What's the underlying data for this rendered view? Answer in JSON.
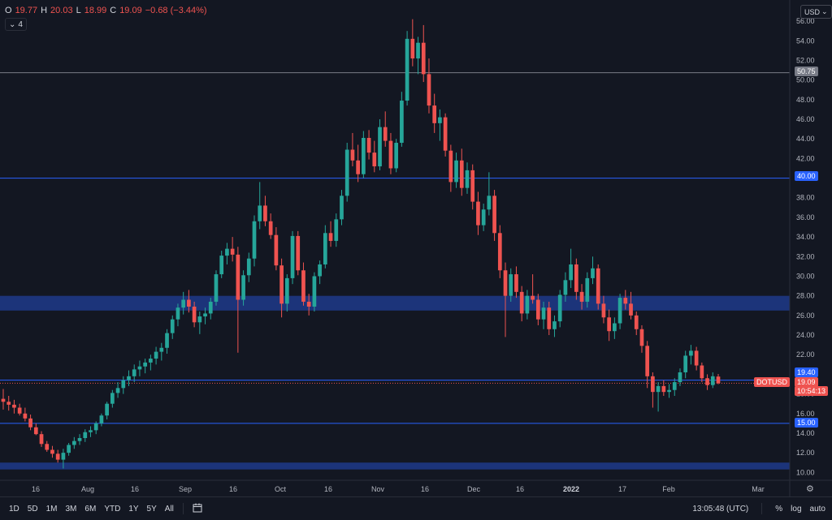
{
  "legend": {
    "open_label": "O",
    "open": "19.77",
    "high_label": "H",
    "high": "20.03",
    "low_label": "L",
    "low": "18.99",
    "close_label": "C",
    "close": "19.09",
    "change": "−0.68 (−3.44%)"
  },
  "indicator_toggle": {
    "icon": "chevron-down-icon",
    "count": "4"
  },
  "currency": {
    "label": "USD",
    "icon": "chevron-down-icon"
  },
  "price_axis": {
    "ticks": [
      "56.00",
      "54.00",
      "52.00",
      "50.00",
      "48.00",
      "46.00",
      "44.00",
      "42.00",
      "40.00",
      "38.00",
      "36.00",
      "34.00",
      "32.00",
      "30.00",
      "28.00",
      "26.00",
      "24.00",
      "22.00",
      "20.00",
      "18.00",
      "16.00",
      "14.00",
      "12.00",
      "10.00"
    ],
    "tick_values": [
      56,
      54,
      52,
      50,
      48,
      46,
      44,
      42,
      40,
      38,
      36,
      34,
      32,
      30,
      28,
      26,
      24,
      22,
      20,
      18,
      16,
      14,
      12,
      10
    ]
  },
  "levels": {
    "line_50": {
      "value": 50.75,
      "label": "50.75",
      "color": "#787b86"
    },
    "line_40": {
      "value": 40.0,
      "label": "40.00",
      "color": "#2962ff"
    },
    "line_15": {
      "value": 15.0,
      "label": "15.00",
      "color": "#2962ff"
    },
    "line_1940": {
      "value": 19.4,
      "label": "19.40",
      "color": "#2962ff"
    },
    "zone_upper": {
      "from": 26.5,
      "to": 28.0,
      "color": "#1e3a8a"
    },
    "zone_lower": {
      "from": 10.3,
      "to": 11.0,
      "color": "#1e3a8a"
    }
  },
  "current_price": {
    "symbol": "DOTUSD",
    "price": "19.09",
    "countdown": "10:54:13",
    "value": 19.09,
    "color": "#ef5350"
  },
  "time_axis": [
    "16",
    "Aug",
    "16",
    "Sep",
    "16",
    "Oct",
    "16",
    "Nov",
    "16",
    "Dec",
    "16",
    "2022",
    "17",
    "Feb",
    "Mar"
  ],
  "bottom_bar": {
    "timeframes": [
      "1D",
      "5D",
      "1M",
      "3M",
      "6M",
      "YTD",
      "1Y",
      "5Y",
      "All"
    ],
    "compare_icon": "date-range-icon",
    "clock": "13:05:48 (UTC)",
    "percent": "%",
    "log": "log",
    "auto": "auto"
  },
  "colors": {
    "up": "#26a69a",
    "down": "#ef5350",
    "bg": "#131722"
  },
  "chart_data": {
    "type": "candlestick",
    "series": [
      {
        "name": "DOTUSD",
        "ohlc": [
          [
            17.5,
            18.5,
            16.4,
            17.2
          ],
          [
            17.2,
            17.8,
            16.3,
            16.9
          ],
          [
            16.9,
            17.4,
            16.0,
            16.6
          ],
          [
            16.6,
            17.0,
            15.8,
            16.0
          ],
          [
            16.0,
            16.6,
            15.2,
            15.5
          ],
          [
            15.5,
            15.9,
            14.3,
            14.6
          ],
          [
            14.6,
            15.0,
            13.8,
            13.9
          ],
          [
            13.9,
            14.2,
            12.6,
            12.9
          ],
          [
            12.9,
            13.2,
            12.1,
            12.3
          ],
          [
            12.3,
            12.7,
            11.5,
            11.9
          ],
          [
            11.9,
            12.3,
            11.0,
            11.3
          ],
          [
            11.3,
            12.4,
            10.4,
            12.0
          ],
          [
            12.0,
            13.0,
            11.7,
            12.8
          ],
          [
            12.8,
            13.6,
            12.4,
            13.2
          ],
          [
            13.2,
            13.9,
            12.8,
            13.5
          ],
          [
            13.5,
            14.4,
            13.1,
            14.1
          ],
          [
            14.1,
            14.7,
            13.6,
            14.3
          ],
          [
            14.3,
            15.2,
            13.9,
            15.0
          ],
          [
            15.0,
            16.0,
            14.7,
            15.8
          ],
          [
            15.8,
            17.2,
            15.4,
            17.0
          ],
          [
            17.0,
            18.4,
            16.6,
            18.1
          ],
          [
            18.1,
            19.2,
            17.6,
            18.6
          ],
          [
            18.6,
            19.8,
            18.0,
            19.4
          ],
          [
            19.4,
            20.4,
            18.8,
            19.8
          ],
          [
            19.8,
            21.0,
            19.2,
            20.5
          ],
          [
            20.5,
            21.4,
            19.8,
            20.8
          ],
          [
            20.8,
            21.6,
            20.1,
            21.2
          ],
          [
            21.2,
            22.0,
            20.4,
            21.6
          ],
          [
            21.6,
            22.8,
            21.0,
            22.3
          ],
          [
            22.3,
            23.2,
            21.4,
            22.7
          ],
          [
            22.7,
            24.6,
            22.1,
            24.2
          ],
          [
            24.2,
            26.0,
            23.6,
            25.6
          ],
          [
            25.6,
            27.2,
            24.9,
            26.8
          ],
          [
            26.8,
            28.4,
            26.1,
            27.6
          ],
          [
            27.6,
            28.6,
            26.3,
            26.9
          ],
          [
            26.9,
            27.4,
            24.8,
            25.3
          ],
          [
            25.3,
            26.4,
            24.1,
            25.9
          ],
          [
            25.9,
            26.8,
            25.1,
            26.2
          ],
          [
            26.2,
            27.8,
            25.6,
            27.4
          ],
          [
            27.4,
            30.6,
            27.0,
            30.2
          ],
          [
            30.2,
            32.6,
            29.8,
            32.1
          ],
          [
            32.1,
            33.4,
            31.2,
            32.8
          ],
          [
            32.8,
            34.0,
            31.5,
            32.2
          ],
          [
            32.2,
            33.0,
            22.2,
            27.6
          ],
          [
            27.6,
            30.6,
            27.0,
            30.1
          ],
          [
            30.1,
            32.4,
            29.4,
            31.8
          ],
          [
            31.8,
            36.2,
            31.0,
            35.6
          ],
          [
            35.6,
            39.6,
            34.8,
            37.2
          ],
          [
            37.2,
            38.2,
            35.1,
            35.6
          ],
          [
            35.6,
            36.4,
            33.8,
            34.2
          ],
          [
            34.2,
            35.0,
            30.6,
            31.1
          ],
          [
            31.1,
            31.8,
            25.8,
            27.2
          ],
          [
            27.2,
            30.2,
            26.4,
            29.8
          ],
          [
            29.8,
            34.6,
            29.2,
            34.1
          ],
          [
            34.1,
            34.6,
            30.1,
            30.6
          ],
          [
            30.6,
            31.4,
            27.0,
            27.4
          ],
          [
            27.4,
            28.2,
            26.0,
            26.9
          ],
          [
            26.9,
            30.4,
            26.4,
            30.0
          ],
          [
            30.0,
            31.6,
            29.2,
            31.2
          ],
          [
            31.2,
            35.2,
            30.8,
            34.4
          ],
          [
            34.4,
            35.6,
            33.0,
            33.6
          ],
          [
            33.6,
            36.4,
            33.0,
            35.8
          ],
          [
            35.8,
            38.8,
            35.2,
            38.2
          ],
          [
            38.2,
            43.6,
            37.6,
            42.9
          ],
          [
            42.9,
            44.6,
            41.2,
            41.8
          ],
          [
            41.8,
            43.4,
            39.6,
            40.4
          ],
          [
            40.4,
            44.8,
            40.0,
            44.1
          ],
          [
            44.1,
            44.9,
            41.9,
            42.6
          ],
          [
            42.6,
            43.8,
            40.6,
            41.2
          ],
          [
            41.2,
            46.0,
            40.8,
            45.2
          ],
          [
            45.2,
            46.8,
            43.2,
            43.8
          ],
          [
            43.8,
            44.6,
            40.4,
            41.0
          ],
          [
            41.0,
            44.0,
            40.6,
            43.6
          ],
          [
            43.6,
            48.8,
            43.2,
            47.9
          ],
          [
            47.9,
            55.0,
            47.4,
            54.2
          ],
          [
            54.2,
            56.2,
            51.4,
            52.2
          ],
          [
            52.2,
            54.4,
            50.6,
            53.8
          ],
          [
            53.8,
            55.6,
            49.8,
            50.6
          ],
          [
            50.6,
            52.2,
            46.6,
            47.4
          ],
          [
            47.4,
            48.6,
            44.6,
            45.6
          ],
          [
            45.6,
            47.0,
            43.8,
            46.2
          ],
          [
            46.2,
            46.6,
            42.2,
            42.8
          ],
          [
            42.8,
            43.4,
            38.6,
            39.6
          ],
          [
            39.6,
            42.6,
            39.0,
            41.8
          ],
          [
            41.8,
            43.0,
            38.2,
            39.0
          ],
          [
            39.0,
            41.6,
            38.4,
            40.8
          ],
          [
            40.8,
            41.4,
            36.8,
            37.6
          ],
          [
            37.6,
            38.6,
            34.2,
            35.2
          ],
          [
            35.2,
            37.4,
            34.6,
            36.8
          ],
          [
            36.8,
            40.6,
            36.2,
            38.2
          ],
          [
            38.2,
            38.8,
            33.6,
            34.4
          ],
          [
            34.4,
            35.2,
            29.8,
            30.6
          ],
          [
            30.6,
            31.4,
            23.8,
            28.0
          ],
          [
            28.0,
            30.8,
            27.4,
            30.2
          ],
          [
            30.2,
            31.0,
            27.8,
            28.4
          ],
          [
            28.4,
            29.0,
            25.4,
            26.2
          ],
          [
            26.2,
            28.6,
            25.6,
            28.0
          ],
          [
            28.0,
            30.2,
            27.2,
            27.6
          ],
          [
            27.6,
            28.2,
            25.0,
            25.6
          ],
          [
            25.6,
            27.4,
            24.6,
            26.8
          ],
          [
            26.8,
            27.4,
            24.0,
            24.6
          ],
          [
            24.6,
            26.0,
            23.8,
            25.4
          ],
          [
            25.4,
            28.6,
            24.8,
            28.1
          ],
          [
            28.1,
            30.4,
            27.4,
            29.6
          ],
          [
            29.6,
            32.8,
            28.8,
            31.2
          ],
          [
            31.2,
            31.8,
            27.6,
            28.4
          ],
          [
            28.4,
            29.2,
            26.6,
            27.4
          ],
          [
            27.4,
            30.4,
            26.8,
            29.8
          ],
          [
            29.8,
            32.0,
            29.2,
            30.8
          ],
          [
            30.8,
            31.2,
            26.6,
            27.2
          ],
          [
            27.2,
            28.0,
            25.2,
            25.8
          ],
          [
            25.8,
            26.6,
            23.4,
            24.4
          ],
          [
            24.4,
            25.8,
            23.6,
            25.2
          ],
          [
            25.2,
            28.2,
            24.6,
            27.8
          ],
          [
            27.8,
            28.6,
            26.6,
            27.2
          ],
          [
            27.2,
            28.4,
            25.6,
            26.0
          ],
          [
            26.0,
            26.4,
            24.0,
            24.6
          ],
          [
            24.6,
            25.0,
            22.2,
            22.9
          ],
          [
            22.9,
            23.4,
            18.6,
            19.8
          ],
          [
            19.8,
            20.2,
            16.6,
            18.2
          ],
          [
            18.2,
            19.2,
            16.2,
            18.8
          ],
          [
            18.8,
            19.4,
            17.8,
            18.2
          ],
          [
            18.2,
            19.0,
            17.6,
            18.4
          ],
          [
            18.4,
            19.6,
            17.8,
            19.2
          ],
          [
            19.2,
            20.6,
            18.8,
            20.2
          ],
          [
            20.2,
            22.4,
            19.6,
            21.9
          ],
          [
            21.9,
            23.0,
            21.0,
            22.4
          ],
          [
            22.4,
            22.8,
            20.4,
            20.9
          ],
          [
            20.9,
            21.2,
            19.2,
            19.6
          ],
          [
            19.6,
            20.0,
            18.4,
            18.9
          ],
          [
            18.9,
            20.2,
            18.6,
            19.8
          ],
          [
            19.77,
            20.03,
            18.99,
            19.09
          ]
        ]
      }
    ],
    "price_range": [
      9.2,
      57.0
    ]
  }
}
